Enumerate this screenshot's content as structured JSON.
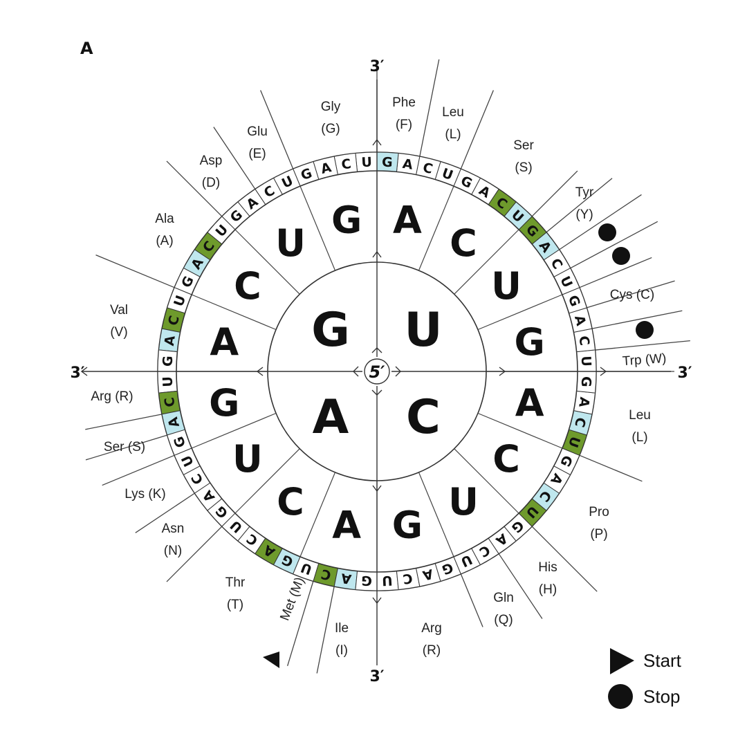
{
  "panel_label": "A",
  "colors": {
    "green": "#6e9a2c",
    "cyan": "#bfe7ee",
    "line": "#333333",
    "text": "#111111"
  },
  "center_label": "5′",
  "axis_end_label": "3′",
  "first": [
    "G",
    "U",
    "C",
    "A"
  ],
  "second": [
    "G",
    "U",
    "C",
    "A",
    "G",
    "U",
    "C",
    "A",
    "G",
    "U",
    "C",
    "A",
    "G",
    "U",
    "C",
    "A"
  ],
  "third": [
    "U",
    "C",
    "A",
    "G",
    "U",
    "C",
    "A",
    "G",
    "U",
    "C",
    "A",
    "G",
    "U",
    "C",
    "A",
    "G",
    "U",
    "C",
    "A",
    "G",
    "U",
    "C",
    "A",
    "G",
    "U",
    "C",
    "A",
    "G",
    "U",
    "C",
    "A",
    "G",
    "U",
    "C",
    "A",
    "G",
    "U",
    "C",
    "A",
    "G",
    "U",
    "C",
    "A",
    "G",
    "U",
    "C",
    "A",
    "G",
    "U",
    "C",
    "A",
    "G",
    "U",
    "C",
    "A",
    "G",
    "U",
    "C",
    "A",
    "G",
    "U",
    "C",
    "A",
    "G"
  ],
  "amino_acids": [
    {
      "name": "Gly",
      "code": "(G)"
    },
    {
      "name": "Glu",
      "code": "(E)"
    },
    {
      "name": "Asp",
      "code": "(D)"
    },
    {
      "name": "Ala",
      "code": "(A)"
    },
    {
      "name": "Val",
      "code": "(V)"
    },
    {
      "name": "Arg (R)",
      "code": ""
    },
    {
      "name": "Ser (S)",
      "code": ""
    },
    {
      "name": "Lys (K)",
      "code": ""
    },
    {
      "name": "Asn",
      "code": "(N)"
    },
    {
      "name": "Thr",
      "code": "(T)"
    },
    {
      "name": "Met (M)",
      "code": ""
    },
    {
      "name": "Ile",
      "code": "(I)"
    },
    {
      "name": "Arg",
      "code": "(R)"
    },
    {
      "name": "Gln",
      "code": "(Q)"
    },
    {
      "name": "His",
      "code": "(H)"
    },
    {
      "name": "Pro",
      "code": "(P)"
    },
    {
      "name": "Leu",
      "code": "(L)"
    },
    {
      "name": "Trp (W)",
      "code": ""
    },
    {
      "name": "Cys (C)",
      "code": ""
    },
    {
      "name": "Tyr",
      "code": "(Y)"
    },
    {
      "name": "Ser",
      "code": "(S)"
    },
    {
      "name": "Leu",
      "code": "(L)"
    },
    {
      "name": "Phe",
      "code": "(F)"
    }
  ],
  "legend": {
    "start": "Start",
    "stop": "Stop"
  }
}
